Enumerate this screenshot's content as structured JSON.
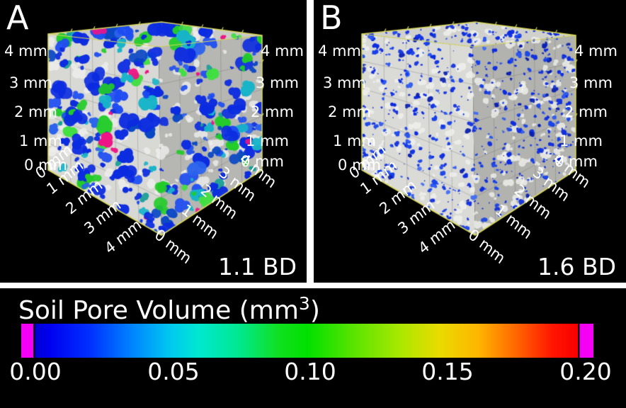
{
  "figure": {
    "background": "#ffffff",
    "panel_background": "#000000",
    "text_color": "#ffffff"
  },
  "panels": [
    {
      "corner_label": "A",
      "bd_label": "1.1 BD",
      "axis_labels": {
        "left_vertical": [
          "4 mm",
          "3 mm",
          "2 mm",
          "1 mm",
          "0 mm"
        ],
        "left_vertical_overlap": "0 mm",
        "left_diagonal": [
          "1 mm",
          "2 mm",
          "3 mm",
          "4 mm"
        ],
        "right_diagonal": [
          "0 mm",
          "1 mm",
          "2 mm",
          "3 mm",
          "4 mm"
        ],
        "right_vertical": [
          "4 mm",
          "3 mm",
          "2 mm",
          "1 mm",
          "0 mm"
        ]
      },
      "render": {
        "seed": 11,
        "blob_count": 300,
        "blob_min_r": 2.2,
        "blob_max_r": 11,
        "palette": [
          [
            "#0b2be0",
            40
          ],
          [
            "#1d4cf2",
            12
          ],
          [
            "#0745c4",
            8
          ],
          [
            "#2a62ee",
            6
          ],
          [
            "#17b4c8",
            11
          ],
          [
            "#189e96",
            5
          ],
          [
            "#22cc28",
            8
          ],
          [
            "#3fdf3f",
            4
          ],
          [
            "#ee1486",
            4
          ]
        ],
        "white_speck_count": 120,
        "speck_min_r": 2,
        "speck_max_r": 7,
        "white_speck_color": "#efefec",
        "face_left": "#d8d8d4",
        "face_right": "#b6b6b2",
        "face_top": "#cacac6",
        "grid_color": "rgba(105,105,105,0.4)",
        "edge_color": "#d9d95e"
      }
    },
    {
      "corner_label": "B",
      "bd_label": "1.6 BD",
      "axis_labels": {
        "left_vertical": [
          "4 mm",
          "3 mm",
          "2 mm",
          "1 mm",
          "0 mm"
        ],
        "left_vertical_overlap": "0 mm",
        "left_diagonal": [
          "1 mm",
          "2 mm",
          "3 mm",
          "4 mm"
        ],
        "right_diagonal": [
          "0 mm",
          "1 mm",
          "2 mm",
          "3 mm",
          "4 mm"
        ],
        "right_vertical": [
          "4 mm",
          "3 mm",
          "2 mm",
          "1 mm",
          "0 mm"
        ]
      },
      "render": {
        "seed": 29,
        "blob_count": 620,
        "blob_min_r": 0.7,
        "blob_max_r": 3.4,
        "palette": [
          [
            "#0b2be0",
            50
          ],
          [
            "#1440ea",
            22
          ],
          [
            "#2b57f0",
            14
          ],
          [
            "#081fae",
            10
          ],
          [
            "#3f6cf4",
            4
          ]
        ],
        "white_speck_count": 200,
        "speck_min_r": 1.5,
        "speck_max_r": 5.5,
        "white_speck_color": "#f0f0ed",
        "face_left": "#dadad7",
        "face_right": "#b2b2ae",
        "face_top": "#d0d0cc",
        "grid_color": "rgba(105,105,105,0.4)",
        "edge_color": "#d9d95e"
      }
    }
  ],
  "colorbar": {
    "title_prefix": "Soil Pore Volume (mm",
    "title_sup": "3",
    "title_suffix": ")",
    "tick_labels": [
      "0.00",
      "0.05",
      "0.10",
      "0.15",
      "0.20"
    ],
    "clamp_color": "#f400f4",
    "gradient_stops": [
      [
        0,
        "#f400f4"
      ],
      [
        2.1,
        "#f400f4"
      ],
      [
        2.1,
        "#0a0a0a"
      ],
      [
        2.4,
        "#0a0a0a"
      ],
      [
        2.4,
        "#0000d2"
      ],
      [
        5,
        "#0000f0"
      ],
      [
        12,
        "#0030ff"
      ],
      [
        19,
        "#0080ff"
      ],
      [
        26,
        "#00c8f0"
      ],
      [
        31,
        "#00e8d0"
      ],
      [
        38,
        "#00e890"
      ],
      [
        45,
        "#10e020"
      ],
      [
        50,
        "#00e000"
      ],
      [
        58,
        "#58e400"
      ],
      [
        66,
        "#a8e800"
      ],
      [
        73,
        "#e8dc00"
      ],
      [
        80,
        "#ffb400"
      ],
      [
        87,
        "#ff6000"
      ],
      [
        93,
        "#ff1400"
      ],
      [
        97.3,
        "#f80000"
      ],
      [
        97.3,
        "#140000"
      ],
      [
        97.6,
        "#140000"
      ],
      [
        97.6,
        "#f400f4"
      ],
      [
        100,
        "#f400f4"
      ]
    ]
  },
  "chart_data": {
    "type": "scatter",
    "subtype": "3d-volume-rendering (X-ray CT soil pore network, two panels + shared colorbar)",
    "panels": [
      {
        "label": "A",
        "annotation": "1.1 BD",
        "axis_unit": "mm",
        "axis_ticks_mm": [
          0,
          1,
          2,
          3,
          4
        ],
        "axis_range_mm": [
          0,
          4
        ],
        "content": "Dense large pores colored by volume: mostly blue (~0.00-0.03 mm3) with cyan/teal (~0.05), green (~0.10) and magenta (>=0.20, clamped) pore clusters on gray soil matrix cube"
      },
      {
        "label": "B",
        "annotation": "1.6 BD",
        "axis_unit": "mm",
        "axis_ticks_mm": [
          0,
          1,
          2,
          3,
          4
        ],
        "axis_range_mm": [
          0,
          4
        ],
        "content": "Sparse fine pores, nearly all small blue specks (~0.00 mm3 end of scale) on gray soil matrix cube"
      }
    ],
    "colorbar": {
      "title": "Soil Pore Volume (mm³)",
      "range": [
        0.0,
        0.2
      ],
      "ticks": [
        0.0,
        0.05,
        0.1,
        0.15,
        0.2
      ],
      "colormap": "jet (blue-cyan-green-yellow-red) with magenta out-of-range clamp bands at both ends",
      "orientation": "horizontal"
    }
  }
}
